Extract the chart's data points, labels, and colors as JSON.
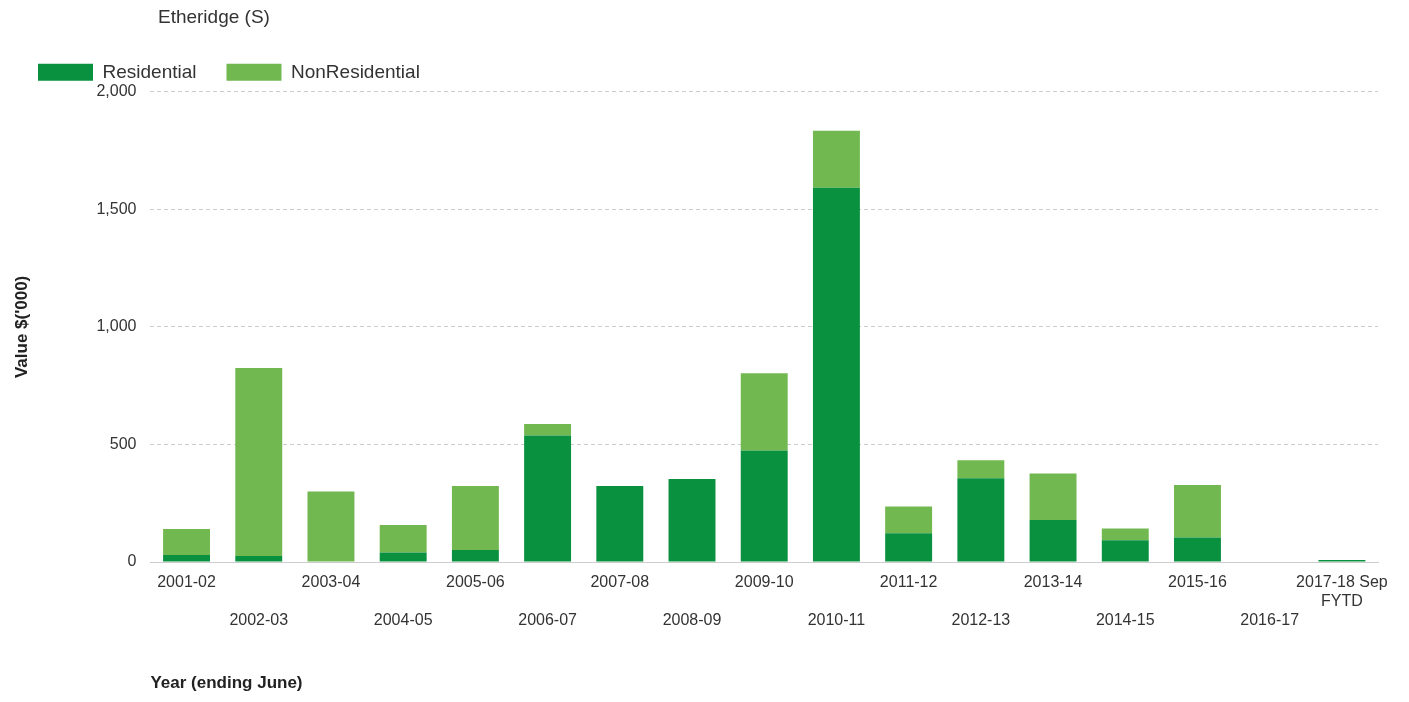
{
  "chart_data": {
    "type": "bar",
    "stacked": true,
    "legend_title": "Etheridge (S)",
    "legend": "top left",
    "xlabel": "Year (ending June)",
    "ylabel": "Value $('000)",
    "categories": [
      "2001-02",
      "2002-03",
      "2003-04",
      "2004-05",
      "2005-06",
      "2006-07",
      "2007-08",
      "2008-09",
      "2009-10",
      "2010-11",
      "2011-12",
      "2012-13",
      "2013-14",
      "2014-15",
      "2015-16",
      "2016-17",
      "2017-18 Sep FYTD"
    ],
    "series": [
      {
        "name": "Residential",
        "color": "#0a9140",
        "values": [
          30,
          25,
          0,
          40,
          51,
          538,
          323,
          353,
          474,
          1592,
          122,
          356,
          179,
          93,
          104,
          0,
          8
        ]
      },
      {
        "name": "NonResidential",
        "color": "#72b850",
        "values": [
          110,
          800,
          300,
          117,
          272,
          49,
          0,
          0,
          329,
          242,
          114,
          77,
          197,
          49,
          223,
          0,
          0
        ]
      }
    ],
    "ylim": [
      0,
      2000
    ],
    "yticks": [
      {
        "value": 0,
        "label": "0"
      },
      {
        "value": 500,
        "label": "500"
      },
      {
        "value": 1000,
        "label": "1,000"
      },
      {
        "value": 1500,
        "label": "1,500"
      },
      {
        "value": 2000,
        "label": "2,000"
      }
    ],
    "grid": "y"
  }
}
